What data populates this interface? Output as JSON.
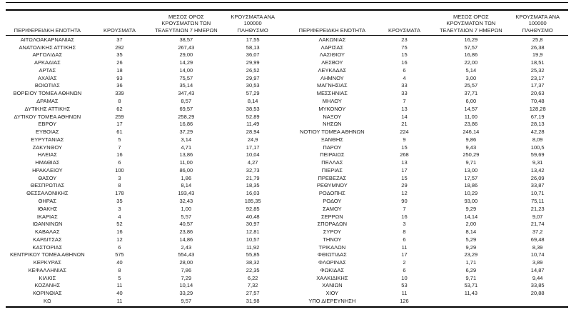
{
  "headers": {
    "region": "ΠΕΡΙΦΕΡΕΙΑΚΗ ΕΝΟΤΗΤΑ",
    "cases": "ΚΡΟΥΣΜΑΤΑ",
    "avg7": "ΜΕΣΟΣ ΟΡΟΣ\nΚΡΟΥΣΜΑΤΩΝ ΤΩΝ\nΤΕΛΕΥΤΑΙΩΝ 7 ΗΜΕΡΩΝ",
    "per100k": "ΚΡΟΥΣΜΑΤΑ ΑΝΑ 100000\nΠΛΗΘΥΣΜΟ"
  },
  "left_rows": [
    [
      "ΑΙΤΩΛΟΑΚΑΡΝΑΝΙΑΣ",
      "37",
      "38,57",
      "17,55"
    ],
    [
      "ΑΝΑΤΟΛΙΚΗΣ ΑΤΤΙΚΗΣ",
      "292",
      "267,43",
      "58,13"
    ],
    [
      "ΑΡΓΟΛΙΔΑΣ",
      "35",
      "29,00",
      "36,07"
    ],
    [
      "ΑΡΚΑΔΙΑΣ",
      "26",
      "14,29",
      "29,99"
    ],
    [
      "ΑΡΤΑΣ",
      "18",
      "14,00",
      "26,52"
    ],
    [
      "ΑΧΑΪΑΣ",
      "93",
      "75,57",
      "29,97"
    ],
    [
      "ΒΟΙΩΤΙΑΣ",
      "36",
      "35,14",
      "30,53"
    ],
    [
      "ΒΟΡΕΙΟΥ ΤΟΜΕΑ ΑΘΗΝΩΝ",
      "339",
      "347,43",
      "57,29"
    ],
    [
      "ΔΡΑΜΑΣ",
      "8",
      "8,57",
      "8,14"
    ],
    [
      "ΔΥΤΙΚΗΣ ΑΤΤΙΚΗΣ",
      "62",
      "69,57",
      "38,53"
    ],
    [
      "ΔΥΤΙΚΟΥ ΤΟΜΕΑ ΑΘΗΝΩΝ",
      "259",
      "258,29",
      "52,89"
    ],
    [
      "ΕΒΡΟΥ",
      "17",
      "16,86",
      "11,49"
    ],
    [
      "ΕΥΒΟΙΑΣ",
      "61",
      "37,29",
      "28,94"
    ],
    [
      "ΕΥΡΥΤΑΝΙΑΣ",
      "5",
      "3,14",
      "24,9"
    ],
    [
      "ΖΑΚΥΝΘΟΥ",
      "7",
      "4,71",
      "17,17"
    ],
    [
      "ΗΛΕΙΑΣ",
      "16",
      "13,86",
      "10,04"
    ],
    [
      "ΗΜΑΘΙΑΣ",
      "6",
      "11,00",
      "4,27"
    ],
    [
      "ΗΡΑΚΛΕΙΟΥ",
      "100",
      "86,00",
      "32,73"
    ],
    [
      "ΘΑΣΟΥ",
      "3",
      "1,86",
      "21,79"
    ],
    [
      "ΘΕΣΠΡΩΤΙΑΣ",
      "8",
      "8,14",
      "18,35"
    ],
    [
      "ΘΕΣΣΑΛΟΝΙΚΗΣ",
      "178",
      "193,43",
      "16,03"
    ],
    [
      "ΘΗΡΑΣ",
      "35",
      "32,43",
      "185,35"
    ],
    [
      "ΙΘΑΚΗΣ",
      "3",
      "1,00",
      "92,85"
    ],
    [
      "ΙΚΑΡΙΑΣ",
      "4",
      "5,57",
      "40,48"
    ],
    [
      "ΙΩΑΝΝΙΝΩΝ",
      "52",
      "40,57",
      "30,97"
    ],
    [
      "ΚΑΒΑΛΑΣ",
      "16",
      "23,86",
      "12,81"
    ],
    [
      "ΚΑΡΔΙΤΣΑΣ",
      "12",
      "14,86",
      "10,57"
    ],
    [
      "ΚΑΣΤΟΡΙΑΣ",
      "6",
      "2,43",
      "11,92"
    ],
    [
      "ΚΕΝΤΡΙΚΟΥ ΤΟΜΕΑ ΑΘΗΝΩΝ",
      "575",
      "554,43",
      "55,85"
    ],
    [
      "ΚΕΡΚΥΡΑΣ",
      "40",
      "28,00",
      "38,32"
    ],
    [
      "ΚΕΦΑΛΛΗΝΙΑΣ",
      "8",
      "7,86",
      "22,35"
    ],
    [
      "ΚΙΛΚΙΣ",
      "5",
      "7,29",
      "6,22"
    ],
    [
      "ΚΟΖΑΝΗΣ",
      "11",
      "10,14",
      "7,32"
    ],
    [
      "ΚΟΡΙΝΘΙΑΣ",
      "40",
      "33,29",
      "27,57"
    ],
    [
      "ΚΩ",
      "11",
      "9,57",
      "31,98"
    ]
  ],
  "right_rows": [
    [
      "ΛΑΚΩΝΙΑΣ",
      "23",
      "16,29",
      "25,8"
    ],
    [
      "ΛΑΡΙΣΑΣ",
      "75",
      "57,57",
      "26,38"
    ],
    [
      "ΛΑΣΙΘΙΟΥ",
      "15",
      "16,86",
      "19,9"
    ],
    [
      "ΛΕΣΒΟΥ",
      "16",
      "22,00",
      "18,51"
    ],
    [
      "ΛΕΥΚΑΔΑΣ",
      "6",
      "5,14",
      "25,32"
    ],
    [
      "ΛΗΜΝΟΥ",
      "4",
      "3,00",
      "23,17"
    ],
    [
      "ΜΑΓΝΗΣΙΑΣ",
      "33",
      "25,57",
      "17,37"
    ],
    [
      "ΜΕΣΣΗΝΙΑΣ",
      "33",
      "37,71",
      "20,63"
    ],
    [
      "ΜΗΛΟΥ",
      "7",
      "6,00",
      "70,48"
    ],
    [
      "ΜΥΚΟΝΟΥ",
      "13",
      "14,57",
      "128,28"
    ],
    [
      "ΝΑΞΟΥ",
      "14",
      "11,00",
      "67,19"
    ],
    [
      "ΝΗΣΩΝ",
      "21",
      "23,86",
      "28,13"
    ],
    [
      "ΝΟΤΙΟΥ ΤΟΜΕΑ ΑΘΗΝΩΝ",
      "224",
      "246,14",
      "42,28"
    ],
    [
      "ΞΑΝΘΗΣ",
      "9",
      "9,86",
      "8,09"
    ],
    [
      "ΠΑΡΟΥ",
      "15",
      "9,43",
      "100,5"
    ],
    [
      "ΠΕΙΡΑΙΩΣ",
      "268",
      "250,29",
      "59,69"
    ],
    [
      "ΠΕΛΛΑΣ",
      "13",
      "9,71",
      "9,31"
    ],
    [
      "ΠΙΕΡΙΑΣ",
      "17",
      "13,00",
      "13,42"
    ],
    [
      "ΠΡΕΒΕΖΑΣ",
      "15",
      "17,57",
      "26,09"
    ],
    [
      "ΡΕΘΥΜΝΟΥ",
      "29",
      "18,86",
      "33,87"
    ],
    [
      "ΡΟΔΟΠΗΣ",
      "12",
      "10,29",
      "10,71"
    ],
    [
      "ΡΟΔΟΥ",
      "90",
      "93,00",
      "75,11"
    ],
    [
      "ΣΑΜΟΥ",
      "7",
      "9,29",
      "21,23"
    ],
    [
      "ΣΕΡΡΩΝ",
      "16",
      "14,14",
      "9,07"
    ],
    [
      "ΣΠΟΡΑΔΩΝ",
      "3",
      "2,00",
      "21,74"
    ],
    [
      "ΣΥΡΟΥ",
      "8",
      "8,14",
      "37,2"
    ],
    [
      "ΤΗΝΟΥ",
      "6",
      "5,29",
      "69,48"
    ],
    [
      "ΤΡΙΚΑΛΩΝ",
      "11",
      "9,29",
      "8,39"
    ],
    [
      "ΦΘΙΩΤΙΔΑΣ",
      "17",
      "23,29",
      "10,74"
    ],
    [
      "ΦΛΩΡΙΝΑΣ",
      "2",
      "1,71",
      "3,89"
    ],
    [
      "ΦΩΚΙΔΑΣ",
      "6",
      "6,29",
      "14,87"
    ],
    [
      "ΧΑΛΚΙΔΙΚΗΣ",
      "10",
      "9,71",
      "9,44"
    ],
    [
      "ΧΑΝΙΩΝ",
      "53",
      "53,71",
      "33,85"
    ],
    [
      "ΧΙΟΥ",
      "11",
      "11,43",
      "20,88"
    ],
    [
      "ΥΠΟ ΔΙΕΡΕΥΝΗΣΗ",
      "126",
      "",
      ""
    ]
  ]
}
